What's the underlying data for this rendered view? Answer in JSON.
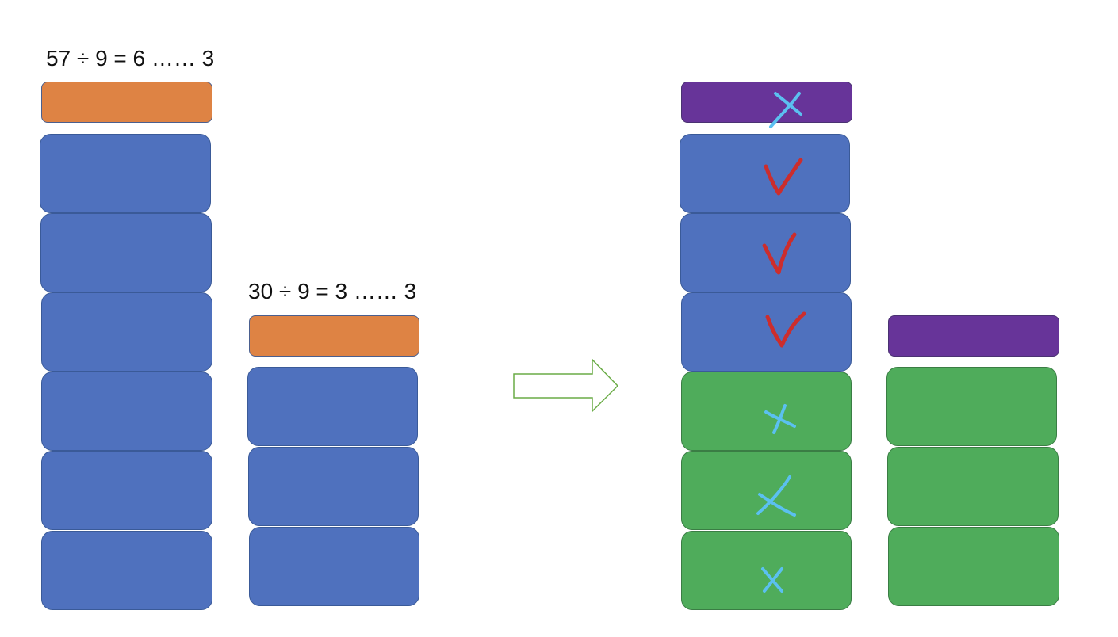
{
  "left_stack": {
    "equation": "57 ÷ 9 = 6 …… 3",
    "remainder_color": "#de8344",
    "unit_color": "#4f71be",
    "full_groups": 6
  },
  "middle_stack": {
    "equation": "30 ÷ 9 = 3 …… 3",
    "remainder_color": "#de8344",
    "unit_color": "#4f71be",
    "full_groups": 3
  },
  "transform_arrow": {
    "icon": "right-arrow-icon",
    "color": "#6aac46"
  },
  "result_left_stack": {
    "top_color": "#673499",
    "blue_groups": 3,
    "green_groups": 3,
    "green_color": "#4fac5b",
    "marks": {
      "top": "cross-icon",
      "blue": "check-icon",
      "green": "cross-icon",
      "check_color": "#cc2d2d",
      "cross_color": "#5bc0f0"
    }
  },
  "result_right_stack": {
    "top_color": "#673499",
    "green_groups": 3,
    "green_color": "#4fac5b"
  }
}
